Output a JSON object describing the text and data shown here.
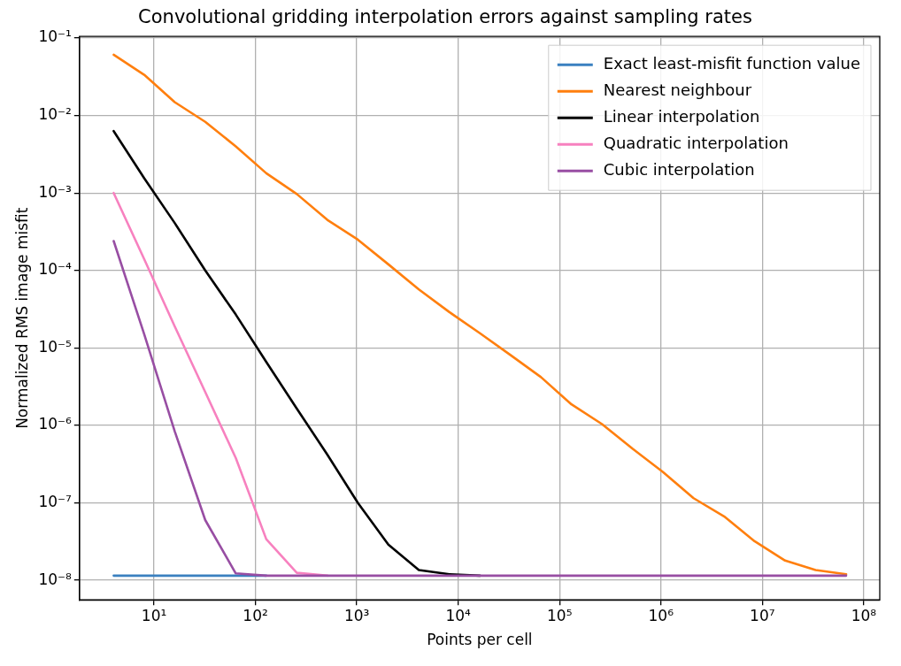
{
  "chart_data": {
    "type": "line",
    "title": "Convolutional gridding interpolation errors against sampling rates",
    "xlabel": "Points per cell",
    "ylabel": "Normalized RMS image misfit",
    "log": "xy",
    "grid": true,
    "legend": "top right",
    "line_style": "solid",
    "marker": "none",
    "x": [
      4,
      8,
      16,
      32,
      64,
      128,
      256,
      512,
      1024,
      2048,
      4096,
      8192,
      16384,
      32768,
      65536,
      131072,
      262144,
      524288,
      1048576,
      2097152,
      4194304,
      8388608,
      16777216,
      33554432,
      67108864
    ],
    "xlim": [
      1.84,
      144000000.0
    ],
    "ylim": [
      5.6e-09,
      0.105
    ],
    "xticks": [
      {
        "value": 10,
        "label": "10¹"
      },
      {
        "value": 100,
        "label": "10²"
      },
      {
        "value": 1000,
        "label": "10³"
      },
      {
        "value": 10000,
        "label": "10⁴"
      },
      {
        "value": 100000,
        "label": "10⁵"
      },
      {
        "value": 1000000,
        "label": "10⁶"
      },
      {
        "value": 10000000,
        "label": "10⁷"
      },
      {
        "value": 100000000,
        "label": "10⁸"
      }
    ],
    "yticks": [
      {
        "value": 1e-08,
        "label": "10⁻⁸"
      },
      {
        "value": 1e-07,
        "label": "10⁻⁷"
      },
      {
        "value": 1e-06,
        "label": "10⁻⁶"
      },
      {
        "value": 1e-05,
        "label": "10⁻⁵"
      },
      {
        "value": 0.0001,
        "label": "10⁻⁴"
      },
      {
        "value": 0.001,
        "label": "10⁻³"
      },
      {
        "value": 0.01,
        "label": "10⁻²"
      },
      {
        "value": 0.1,
        "label": "10⁻¹"
      }
    ],
    "series": [
      {
        "name": "Exact least-misfit function value",
        "color": "#3a80c0",
        "values": [
          1.15e-08,
          1.15e-08,
          1.15e-08,
          1.15e-08,
          1.15e-08,
          1.15e-08,
          null,
          null,
          null,
          null,
          null,
          null,
          null,
          null,
          null,
          null,
          null,
          null,
          null,
          null,
          null,
          null,
          null,
          null,
          null
        ]
      },
      {
        "name": "Nearest neighbour",
        "color": "#ff7f0e",
        "values": [
          0.061,
          0.0336,
          0.0149,
          0.0083,
          0.004,
          0.0018,
          0.00097,
          0.00045,
          0.00025,
          0.00012,
          5.7e-05,
          2.9e-05,
          1.55e-05,
          8.1e-06,
          4.2e-06,
          1.87e-06,
          1.04e-06,
          5e-07,
          2.5e-07,
          1.15e-07,
          6.7e-08,
          3.2e-08,
          1.8e-08,
          1.36e-08,
          1.2e-08
        ]
      },
      {
        "name": "Linear interpolation",
        "color": "#000000",
        "values": [
          0.0063,
          0.00155,
          0.00041,
          0.0001,
          2.7e-05,
          6.6e-06,
          1.65e-06,
          4.2e-07,
          1e-07,
          2.9e-08,
          1.36e-08,
          1.2e-08,
          1.15e-08,
          null,
          null,
          null,
          null,
          null,
          null,
          null,
          null,
          null,
          null,
          null,
          null
        ]
      },
      {
        "name": "Quadratic interpolation",
        "color": "#f781bf",
        "values": [
          0.001,
          0.00014,
          1.9e-05,
          2.7e-06,
          3.8e-07,
          3.4e-08,
          1.25e-08,
          1.15e-08,
          null,
          null,
          null,
          null,
          null,
          null,
          null,
          null,
          null,
          null,
          null,
          null,
          null,
          null,
          null,
          null,
          null
        ]
      },
      {
        "name": "Cubic interpolation",
        "color": "#984ea3",
        "values": [
          0.00024,
          1.5e-05,
          8.4e-07,
          6e-08,
          1.23e-08,
          1.15e-08,
          1.15e-08,
          1.15e-08,
          1.15e-08,
          1.15e-08,
          1.15e-08,
          1.15e-08,
          1.15e-08,
          1.15e-08,
          1.15e-08,
          1.15e-08,
          1.15e-08,
          1.15e-08,
          1.15e-08,
          1.15e-08,
          1.15e-08,
          1.15e-08,
          1.15e-08,
          1.15e-08,
          1.15e-08
        ]
      }
    ]
  }
}
